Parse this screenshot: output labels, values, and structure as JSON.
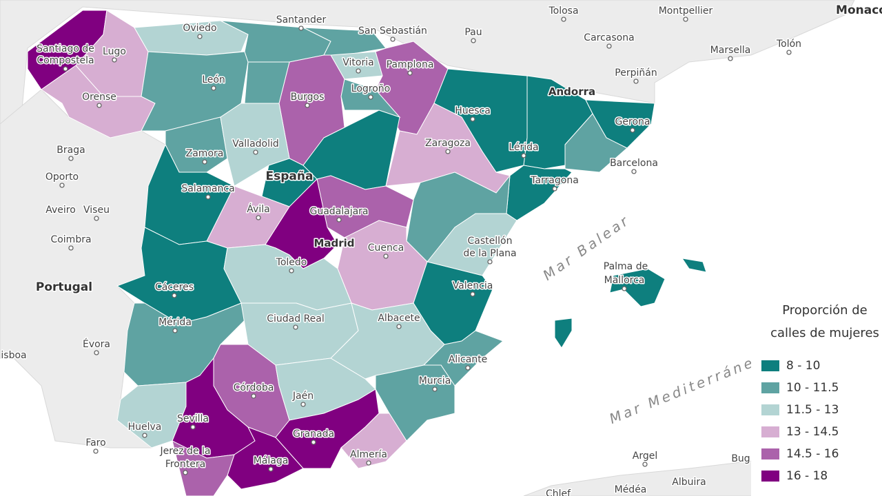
{
  "legend": {
    "title": [
      "Proporción de",
      "calles de mujeres"
    ],
    "items": [
      {
        "label": "8 - 10",
        "color": "#0e7f7e"
      },
      {
        "label": "10 - 11.5",
        "color": "#5fa3a2"
      },
      {
        "label": "11.5 - 13",
        "color": "#b3d4d3"
      },
      {
        "label": "13 - 14.5",
        "color": "#d7aed2"
      },
      {
        "label": "14.5 - 16",
        "color": "#ab62ab"
      },
      {
        "label": "16 - 18",
        "color": "#800080"
      }
    ]
  },
  "map_labels": [
    "Tolosa",
    "Montpellier",
    "Monaco",
    "Santander",
    "San Sebastián",
    "Carcasona",
    "Marsella",
    "Tolón",
    "Oviedo",
    "Pau",
    "Santiago de",
    "Compostela",
    "Lugo",
    "Vitoria",
    "Pamplona",
    "Perpiñán",
    "León",
    "Logroño",
    "Burgos",
    "Andorra",
    "Orense",
    "Huesca",
    "Gerona",
    "Braga",
    "Valladolid",
    "Zaragoza",
    "Zamora",
    "Lérida",
    "Barcelona",
    "Oporto",
    "España",
    "Tarragona",
    "Salamanca",
    "Aveiro",
    "Viseu",
    "Ávila",
    "Guadalajara",
    "Madrid",
    "Coimbra",
    "Cuenca",
    "Castellón",
    "de la Plana",
    "Toledo",
    "Portugal",
    "Cáceres",
    "Valencia",
    "Palma de",
    "Mallorca",
    "Mérida",
    "Ciudad Real",
    "Albacete",
    "Évora",
    "isboa",
    "Alicante",
    "Murcia",
    "Córdoba",
    "Jaén",
    "Huelva",
    "Sevilla",
    "Granada",
    "Faro",
    "Jerez de la",
    "Frontera",
    "Almería",
    "Málaga",
    "Argel",
    "Bug",
    "Albuira",
    "Chlef",
    "Médéa"
  ],
  "sea_labels": [
    "Mar Balear",
    "Mar Mediterráneo"
  ]
}
